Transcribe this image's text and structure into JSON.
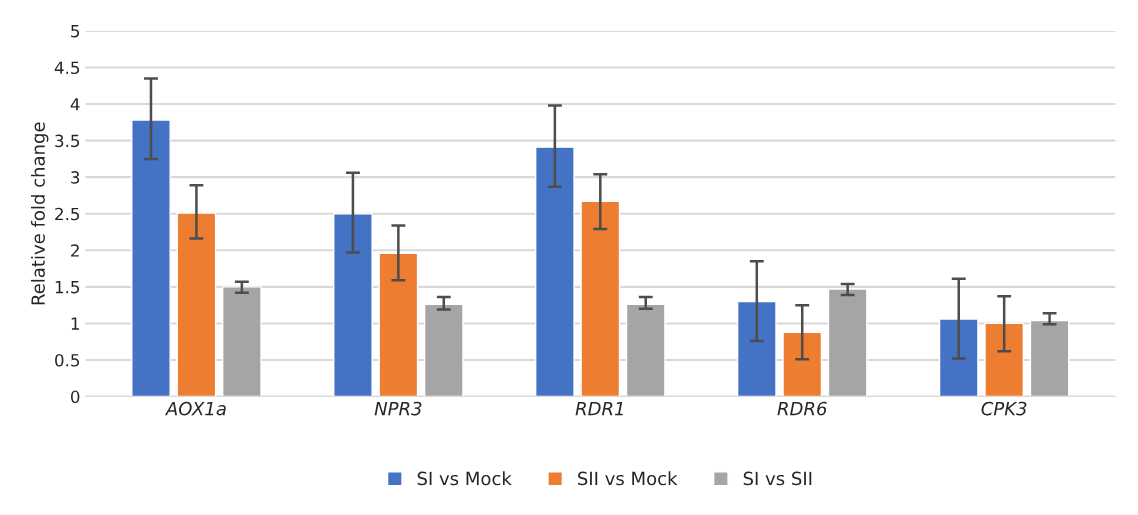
{
  "chart_data": {
    "type": "bar",
    "ylabel": "Relative fold change",
    "categories": [
      "AOX1a",
      "NPR3",
      "RDR1",
      "RDR6",
      "CPK3"
    ],
    "series": [
      {
        "name": "SI vs Mock",
        "color": "#4472c4",
        "values": [
          3.78,
          2.5,
          3.41,
          1.3,
          1.06
        ],
        "errors": [
          [
            3.25,
            4.35
          ],
          [
            1.97,
            3.06
          ],
          [
            2.87,
            3.98
          ],
          [
            0.76,
            1.85
          ],
          [
            0.52,
            1.61
          ]
        ]
      },
      {
        "name": "SII vs Mock",
        "color": "#ed7d31",
        "values": [
          2.51,
          1.96,
          2.67,
          0.88,
          1.0
        ],
        "errors": [
          [
            2.16,
            2.89
          ],
          [
            1.59,
            2.34
          ],
          [
            2.29,
            3.04
          ],
          [
            0.51,
            1.25
          ],
          [
            0.62,
            1.37
          ]
        ]
      },
      {
        "name": "SI vs SII",
        "color": "#a5a5a5",
        "values": [
          1.5,
          1.26,
          1.26,
          1.47,
          1.04
        ],
        "errors": [
          [
            1.42,
            1.57
          ],
          [
            1.19,
            1.36
          ],
          [
            1.2,
            1.36
          ],
          [
            1.39,
            1.54
          ],
          [
            0.99,
            1.14
          ]
        ]
      }
    ],
    "ylim": [
      0,
      5
    ],
    "yticks": [
      0,
      0.5,
      1,
      1.5,
      2,
      2.5,
      3,
      3.5,
      4,
      4.5,
      5
    ],
    "grid": "y",
    "legend": "bottom"
  }
}
